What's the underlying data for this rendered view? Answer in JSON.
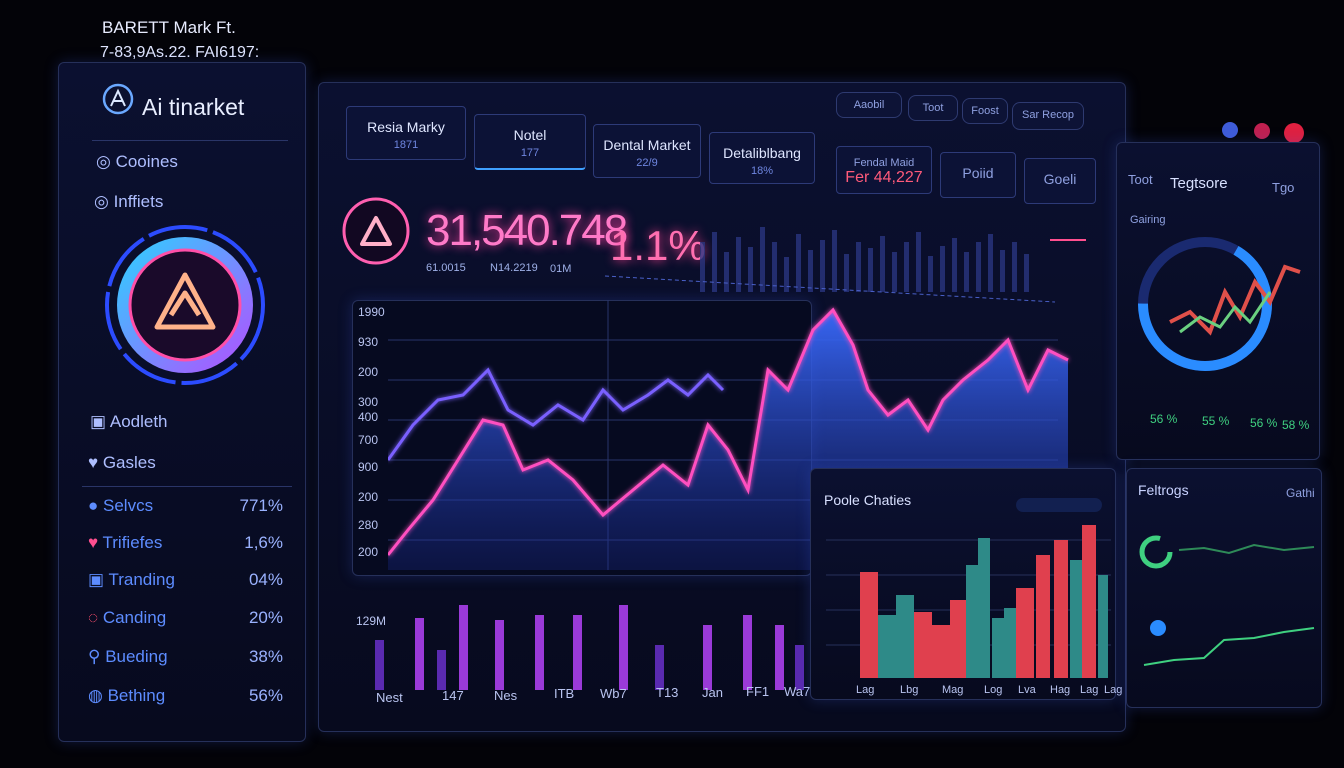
{
  "header": {
    "title": "BARETT Mark Ft.",
    "subtitle": "7-83,9As.22. FAI6197:"
  },
  "sidebar": {
    "brand": "Ai tinarket",
    "menu": [
      "Cooines",
      "Inffiets"
    ],
    "links": [
      "Aodleth",
      "Gasles"
    ],
    "stats": [
      {
        "label": "Selvcs",
        "value": "771%"
      },
      {
        "label": "Trifiefes",
        "value": "1,6%"
      },
      {
        "label": "Tranding",
        "value": "04%"
      },
      {
        "label": "Canding",
        "value": "20%"
      },
      {
        "label": "Bueding",
        "value": "38%"
      },
      {
        "label": "Bething",
        "value": "56%"
      }
    ]
  },
  "toolbar": [
    "Aaobil",
    "Toot",
    "Foost",
    "Sar Recop"
  ],
  "tabs": [
    {
      "label": "Resia Marky",
      "value": "1871"
    },
    {
      "label": "Notel",
      "value": "177"
    },
    {
      "label": "Dental Market",
      "value": "22/9"
    },
    {
      "label": "Detaliblbang",
      "value": "18%"
    }
  ],
  "cards": [
    {
      "label": "Fendal Maid",
      "value": "Fer 44,227"
    },
    {
      "label": "Poiid"
    },
    {
      "label": "Goeli"
    }
  ],
  "kpi": {
    "value": "31,540.748",
    "details": [
      "61.0015",
      "N14.2219",
      "01M"
    ],
    "change": "1.1%"
  },
  "main_chart": {
    "y_labels": [
      "1990",
      "930",
      "200",
      "300",
      "400",
      "700",
      "900",
      "200",
      "280",
      "200"
    ]
  },
  "bar_chart": {
    "y_label": "129M",
    "x_labels": [
      "Nest",
      "147",
      "Nes",
      "ITB",
      "Wb7",
      "T13",
      "Jan",
      "FF1",
      "Wa7"
    ]
  },
  "pole_chart": {
    "title": "Poole Chaties",
    "x_labels": [
      "Lag",
      "Lbg",
      "Mag",
      "Log",
      "Lva",
      "Hag",
      "Lag",
      "Lag"
    ]
  },
  "right_panel": {
    "tabs": [
      "Toot",
      "Tegtsore",
      "Tgo"
    ],
    "label": "Gairing",
    "stats": [
      "56 %",
      "55 %",
      "56 %",
      "58 %"
    ]
  },
  "right_panel_2": {
    "title": "Feltrogs",
    "action": "Gathi"
  }
}
